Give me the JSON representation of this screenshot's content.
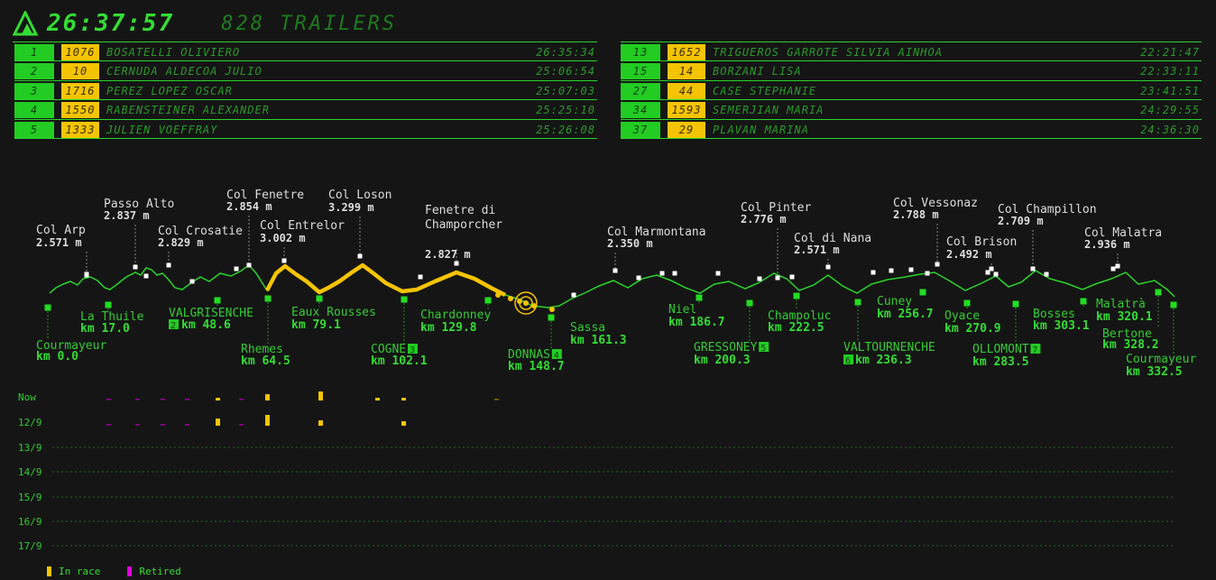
{
  "header": {
    "clock": "26:37:57",
    "title": "828 TRAILERS"
  },
  "colors": {
    "green": "#33dd33",
    "in_race": "#f5c400",
    "retired": "#e000e0"
  },
  "leaders_left": [
    {
      "pos": "1",
      "bib": "1076",
      "name": "BOSATELLI OLIVIERO",
      "time": "26:35:34"
    },
    {
      "pos": "2",
      "bib": "10",
      "name": "CERNUDA ALDECOA JULIO",
      "time": "25:06:54"
    },
    {
      "pos": "3",
      "bib": "1716",
      "name": "PEREZ LOPEZ OSCAR",
      "time": "25:07:03"
    },
    {
      "pos": "4",
      "bib": "1550",
      "name": "RABENSTEINER ALEXANDER",
      "time": "25:25:10"
    },
    {
      "pos": "5",
      "bib": "1333",
      "name": "JULIEN VOEFFRAY",
      "time": "25:26:08"
    }
  ],
  "leaders_right": [
    {
      "pos": "13",
      "bib": "1652",
      "name": "TRIGUEROS GARROTE SILVIA AINHOA",
      "time": "22:21:47"
    },
    {
      "pos": "15",
      "bib": "14",
      "name": "BORZANI LISA",
      "time": "22:33:11"
    },
    {
      "pos": "27",
      "bib": "44",
      "name": "CASE STEPHANIE",
      "time": "23:41:51"
    },
    {
      "pos": "34",
      "bib": "1593",
      "name": "SEMERJIAN MARIA",
      "time": "24:29:55"
    },
    {
      "pos": "37",
      "bib": "29",
      "name": "PLAVAN MARINA",
      "time": "24:36:30"
    }
  ],
  "cols": [
    {
      "name": "Col Arp",
      "alt": "2.571 m"
    },
    {
      "name": "Passo Alto",
      "alt": "2.837 m"
    },
    {
      "name": "Col Crosatie",
      "alt": "2.829 m"
    },
    {
      "name": "Col Fenetre",
      "alt": "2.854 m"
    },
    {
      "name": "Col Entrelor",
      "alt": "3.002 m"
    },
    {
      "name": "Col Loson",
      "alt": "3.299 m"
    },
    {
      "name": "Fenetre di",
      "name2": "Champorcher",
      "alt": "2.827 m"
    },
    {
      "name": "Col Marmontana",
      "alt": "2.350 m"
    },
    {
      "name": "Col Pinter",
      "alt": "2.776 m"
    },
    {
      "name": "Col di Nana",
      "alt": "2.571 m"
    },
    {
      "name": "Col Vessonaz",
      "alt": "2.788 m"
    },
    {
      "name": "Col Brison",
      "alt": "2.492 m"
    },
    {
      "name": "Col Champillon",
      "alt": "2.709 m"
    },
    {
      "name": "Col Malatra",
      "alt": "2.936 m"
    }
  ],
  "places": [
    {
      "name": "Courmayeur",
      "km": "km 0.0"
    },
    {
      "name": "La Thuile",
      "km": "km 17.0"
    },
    {
      "name": "VALGRISENCHE",
      "km": "km 48.6",
      "badge": "2"
    },
    {
      "name": "Rhemes",
      "km": "km 64.5"
    },
    {
      "name": "Eaux Rousses",
      "km": "km 79.1"
    },
    {
      "name": "COGNE",
      "km": "km 102.1",
      "badge": "3"
    },
    {
      "name": "Chardonney",
      "km": "km 129.8"
    },
    {
      "name": "DONNAS",
      "km": "km 148.7",
      "badge": "4"
    },
    {
      "name": "Sassa",
      "km": "km 161.3"
    },
    {
      "name": "Niel",
      "km": "km 186.7"
    },
    {
      "name": "GRESSONEY",
      "km": "km 200.3",
      "badge": "5"
    },
    {
      "name": "Champoluc",
      "km": "km 222.5"
    },
    {
      "name": "VALTOURNENCHE",
      "km": "km 236.3",
      "badge": "6"
    },
    {
      "name": "Cuney",
      "km": "km 256.7"
    },
    {
      "name": "Oyace",
      "km": "km 270.9"
    },
    {
      "name": "OLLOMONT",
      "km": "km 283.5",
      "badge": "7"
    },
    {
      "name": "Bosses",
      "km": "km 303.1"
    },
    {
      "name": "Malatrà",
      "km": "km 320.1"
    },
    {
      "name": "Bertone",
      "km": "km 328.2"
    },
    {
      "name": "Courmayeur",
      "km": "km 332.5"
    }
  ],
  "days": [
    "Now",
    "12/9",
    "13/9",
    "14/9",
    "15/9",
    "16/9",
    "17/9"
  ],
  "legend": {
    "in_race": "In race",
    "retired": "Retired"
  }
}
